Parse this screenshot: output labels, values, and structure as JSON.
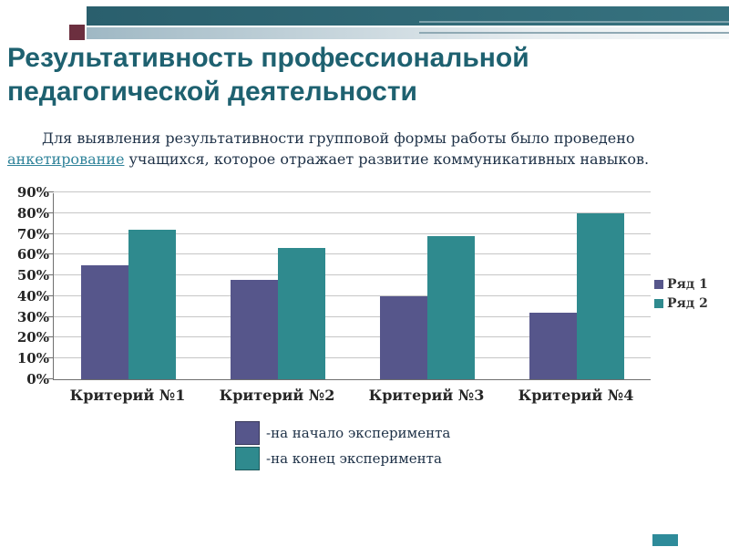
{
  "slide": {
    "title": "Результативность профессиональной педагогической деятельности",
    "paragraph": {
      "before": "Для выявления результативности групповой формы работы было проведено ",
      "link": "анкетирование",
      "after": " учащихся, которое отражает развитие коммуникативных навыков."
    }
  },
  "chart_data": {
    "type": "bar",
    "categories": [
      "Критерий №1",
      "Критерий №2",
      "Критерий №3",
      "Критерий №4"
    ],
    "series": [
      {
        "name": "Ряд 1",
        "color": "#56568b",
        "values": [
          55,
          48,
          40,
          32
        ]
      },
      {
        "name": "Ряд 2",
        "color": "#2f8a8e",
        "values": [
          72,
          63,
          69,
          80
        ]
      }
    ],
    "title": "",
    "xlabel": "",
    "ylabel": "",
    "ylim": [
      0,
      90
    ],
    "ytick_step": 10,
    "ytick_suffix": "%",
    "grid": true,
    "legend_position": "right"
  },
  "bottom_legend": [
    {
      "label": "-на начало эксперимента",
      "color": "#56568b"
    },
    {
      "label": "-на конец эксперимента",
      "color": "#2f8a8e"
    }
  ],
  "theme": {
    "title_color": "#1e6170",
    "band_dark": "#2e6a77",
    "accent_maroon": "#6c2f3f",
    "accent_teal": "#2e8b9a"
  }
}
